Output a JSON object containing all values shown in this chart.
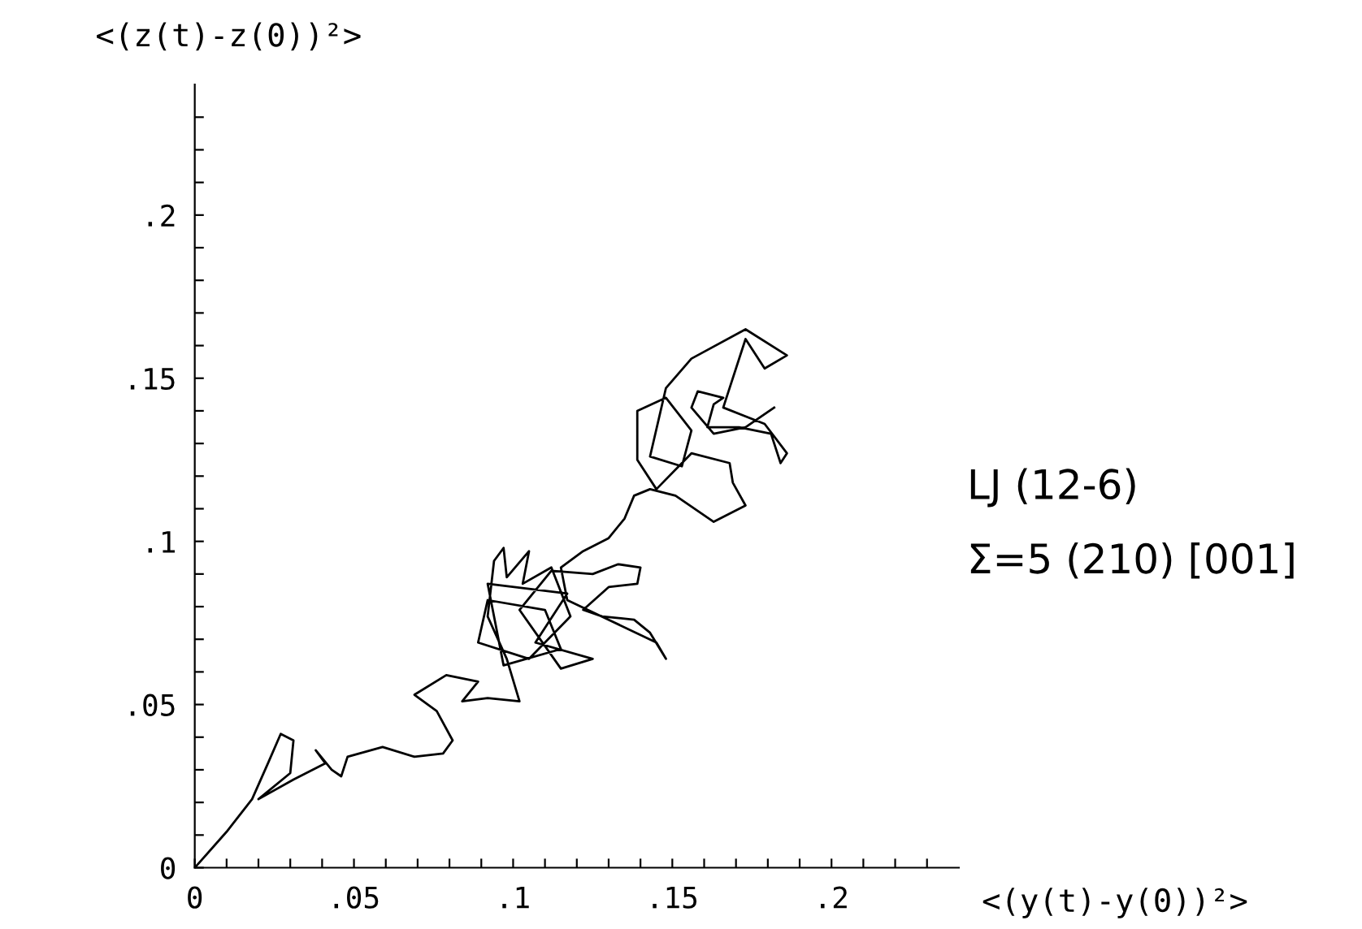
{
  "chart_data": {
    "type": "line",
    "xlabel": "<(y(t)-y(0))²>",
    "ylabel": "<(z(t)-z(0))²>",
    "annotations": [
      "LJ (12-6)",
      "Σ=5 (210) [001]"
    ],
    "xlim": [
      0,
      0.24
    ],
    "ylim": [
      0,
      0.24
    ],
    "xticks": [
      {
        "value": 0,
        "label": "0"
      },
      {
        "value": 0.01,
        "label": null
      },
      {
        "value": 0.02,
        "label": null
      },
      {
        "value": 0.03,
        "label": null
      },
      {
        "value": 0.04,
        "label": null
      },
      {
        "value": 0.05,
        "label": ".05"
      },
      {
        "value": 0.06,
        "label": null
      },
      {
        "value": 0.07,
        "label": null
      },
      {
        "value": 0.08,
        "label": null
      },
      {
        "value": 0.09,
        "label": null
      },
      {
        "value": 0.1,
        "label": ".1"
      },
      {
        "value": 0.11,
        "label": null
      },
      {
        "value": 0.12,
        "label": null
      },
      {
        "value": 0.13,
        "label": null
      },
      {
        "value": 0.14,
        "label": null
      },
      {
        "value": 0.15,
        "label": ".15"
      },
      {
        "value": 0.16,
        "label": null
      },
      {
        "value": 0.17,
        "label": null
      },
      {
        "value": 0.18,
        "label": null
      },
      {
        "value": 0.19,
        "label": null
      },
      {
        "value": 0.2,
        "label": ".2"
      },
      {
        "value": 0.21,
        "label": null
      },
      {
        "value": 0.22,
        "label": null
      },
      {
        "value": 0.23,
        "label": null
      }
    ],
    "yticks": [
      {
        "value": 0,
        "label": "0"
      },
      {
        "value": 0.01,
        "label": null
      },
      {
        "value": 0.02,
        "label": null
      },
      {
        "value": 0.03,
        "label": null
      },
      {
        "value": 0.04,
        "label": null
      },
      {
        "value": 0.05,
        "label": ".05"
      },
      {
        "value": 0.06,
        "label": null
      },
      {
        "value": 0.07,
        "label": null
      },
      {
        "value": 0.08,
        "label": null
      },
      {
        "value": 0.09,
        "label": null
      },
      {
        "value": 0.1,
        "label": ".1"
      },
      {
        "value": 0.11,
        "label": null
      },
      {
        "value": 0.12,
        "label": null
      },
      {
        "value": 0.13,
        "label": null
      },
      {
        "value": 0.14,
        "label": null
      },
      {
        "value": 0.15,
        "label": ".15"
      },
      {
        "value": 0.16,
        "label": null
      },
      {
        "value": 0.17,
        "label": null
      },
      {
        "value": 0.18,
        "label": null
      },
      {
        "value": 0.19,
        "label": null
      },
      {
        "value": 0.2,
        "label": ".2"
      },
      {
        "value": 0.21,
        "label": null
      },
      {
        "value": 0.22,
        "label": null
      },
      {
        "value": 0.23,
        "label": null
      }
    ],
    "grid": false,
    "marker": "none",
    "line_style": "solid",
    "series": [
      {
        "color": "#000000",
        "x": [
          0,
          0.01,
          0.018,
          0.023,
          0.027,
          0.031,
          0.03,
          0.02,
          0.031,
          0.041,
          0.038,
          0.043,
          0.046,
          0.048,
          0.059,
          0.069,
          0.078,
          0.081,
          0.076,
          0.069,
          0.079,
          0.089,
          0.084,
          0.092,
          0.102,
          0.098,
          0.092,
          0.094,
          0.097,
          0.098,
          0.105,
          0.103,
          0.112,
          0.118,
          0.105,
          0.089,
          0.092,
          0.11,
          0.115,
          0.097,
          0.092,
          0.117,
          0.107,
          0.125,
          0.115,
          0.102,
          0.112,
          0.125,
          0.133,
          0.14,
          0.139,
          0.13,
          0.122,
          0.128,
          0.138,
          0.143,
          0.148,
          0.145,
          0.117,
          0.115,
          0.122,
          0.13,
          0.135,
          0.138,
          0.143,
          0.151,
          0.163,
          0.173,
          0.169,
          0.168,
          0.156,
          0.145,
          0.139,
          0.139,
          0.148,
          0.156,
          0.153,
          0.143,
          0.148,
          0.156,
          0.173,
          0.186,
          0.179,
          0.173,
          0.166,
          0.179,
          0.186,
          0.184,
          0.181,
          0.171,
          0.161,
          0.163,
          0.166,
          0.158,
          0.156,
          0.163,
          0.173,
          0.182
        ],
        "values": [
          0,
          0.011,
          0.021,
          0.032,
          0.041,
          0.039,
          0.029,
          0.021,
          0.027,
          0.032,
          0.036,
          0.03,
          0.028,
          0.034,
          0.037,
          0.034,
          0.035,
          0.039,
          0.048,
          0.053,
          0.059,
          0.057,
          0.051,
          0.052,
          0.051,
          0.064,
          0.077,
          0.094,
          0.098,
          0.089,
          0.097,
          0.087,
          0.092,
          0.077,
          0.064,
          0.069,
          0.082,
          0.079,
          0.067,
          0.062,
          0.087,
          0.084,
          0.069,
          0.064,
          0.061,
          0.079,
          0.091,
          0.09,
          0.093,
          0.092,
          0.087,
          0.086,
          0.079,
          0.077,
          0.076,
          0.072,
          0.064,
          0.069,
          0.082,
          0.092,
          0.097,
          0.101,
          0.107,
          0.114,
          0.116,
          0.114,
          0.106,
          0.111,
          0.118,
          0.124,
          0.127,
          0.116,
          0.125,
          0.14,
          0.144,
          0.134,
          0.123,
          0.126,
          0.147,
          0.156,
          0.165,
          0.157,
          0.153,
          0.162,
          0.141,
          0.136,
          0.127,
          0.124,
          0.133,
          0.135,
          0.135,
          0.142,
          0.144,
          0.146,
          0.141,
          0.133,
          0.135,
          0.141
        ]
      }
    ]
  }
}
